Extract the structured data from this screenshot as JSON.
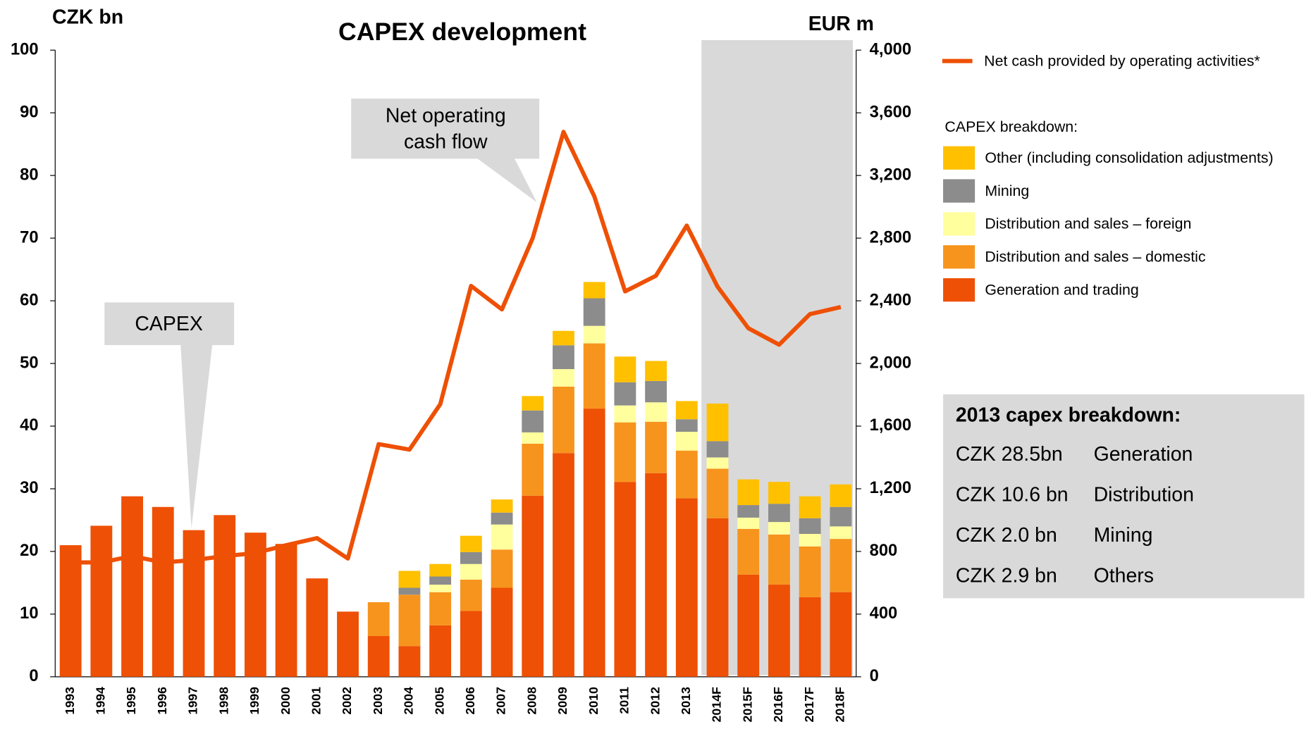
{
  "chart_data": {
    "type": "bar",
    "title": "CAPEX development",
    "ylabel": "CZK bn",
    "y2label": "EUR m",
    "categories": [
      "1993",
      "1994",
      "1995",
      "1996",
      "1997",
      "1998",
      "1999",
      "2000",
      "2001",
      "2002",
      "2003",
      "2004",
      "2005",
      "2006",
      "2007",
      "2008",
      "2009",
      "2010",
      "2011",
      "2012",
      "2013",
      "2014F",
      "2015F",
      "2016F",
      "2017F",
      "2018F"
    ],
    "series": [
      {
        "name": "Generation and  trading",
        "color": "#ee5005",
        "values": [
          21.0,
          24.1,
          28.8,
          27.1,
          23.4,
          25.8,
          23.0,
          21.2,
          15.7,
          10.4,
          6.5,
          4.9,
          8.2,
          10.5,
          14.2,
          28.9,
          35.7,
          42.8,
          31.1,
          32.5,
          28.5,
          25.3,
          16.3,
          14.7,
          12.7,
          13.5
        ]
      },
      {
        "name": "Distribution and sales  – domestic",
        "color": "#f7941d",
        "values": [
          0,
          0,
          0,
          0,
          0,
          0,
          0,
          0,
          0,
          0,
          5.4,
          8.2,
          5.3,
          5.0,
          6.1,
          8.3,
          10.6,
          10.4,
          9.5,
          8.2,
          7.6,
          7.9,
          7.3,
          8.0,
          8.1,
          8.5
        ]
      },
      {
        "name": "Distribution and sales – foreign",
        "color": "#ffff9e",
        "values": [
          0,
          0,
          0,
          0,
          0,
          0,
          0,
          0,
          0,
          0,
          0,
          0,
          1.2,
          2.5,
          4.0,
          1.8,
          2.8,
          2.8,
          2.7,
          3.1,
          3.0,
          1.8,
          1.8,
          2.0,
          2.0,
          2.0
        ]
      },
      {
        "name": "Mining",
        "color": "#8c8c8c",
        "values": [
          0,
          0,
          0,
          0,
          0,
          0,
          0,
          0,
          0,
          0,
          0,
          1.1,
          1.3,
          1.9,
          1.9,
          3.5,
          3.8,
          4.4,
          3.7,
          3.4,
          2.0,
          2.6,
          2.0,
          2.9,
          2.5,
          3.1
        ]
      },
      {
        "name": "Other (including consolidation adjustments)",
        "color": "#ffc000",
        "values": [
          0,
          0,
          0,
          0,
          0,
          0,
          0,
          0,
          0,
          0,
          0,
          2.7,
          2.0,
          2.6,
          2.1,
          2.3,
          2.3,
          2.6,
          4.1,
          3.2,
          2.9,
          6.0,
          4.1,
          3.5,
          3.5,
          3.6
        ]
      },
      {
        "name": "Net cash provided by operating activities*",
        "color": "#ee5005",
        "type": "line",
        "axis": "y2",
        "values": [
          730,
          730,
          770,
          730,
          745,
          770,
          790,
          840,
          885,
          755,
          1485,
          1450,
          1740,
          2495,
          2345,
          2800,
          3478,
          3067,
          2460,
          2560,
          2880,
          2490,
          2225,
          2120,
          2315,
          2360
        ]
      }
    ],
    "ylim": [
      0,
      100
    ],
    "yticks": [
      0,
      10,
      20,
      30,
      40,
      50,
      60,
      70,
      80,
      90,
      100
    ],
    "y2lim": [
      0,
      4000
    ],
    "y2ticks": [
      0,
      400,
      800,
      {
        "value": 1200,
        "label": "1,200"
      },
      {
        "value": 1600,
        "label": "1,600"
      },
      {
        "value": 2000,
        "label": "2,000"
      },
      {
        "value": 2400,
        "label": "2,400"
      },
      {
        "value": 2800,
        "label": "2,800"
      },
      {
        "value": 3200,
        "label": "3,200"
      },
      {
        "value": 3600,
        "label": "3,600"
      },
      {
        "value": 4000,
        "label": "4,000"
      }
    ],
    "legend_title": "CAPEX breakdown:",
    "annotations": [
      {
        "lines": [
          "CAPEX"
        ]
      },
      {
        "lines": [
          "Net operating",
          "cash flow"
        ]
      }
    ]
  },
  "breakdown_box": {
    "title": "2013 capex breakdown:",
    "rows": [
      [
        "CZK 28.5bn",
        "Generation"
      ],
      [
        "CZK 10.6 bn",
        "Distribution"
      ],
      [
        "CZK  2.0 bn",
        "Mining"
      ],
      [
        "CZK 2.9 bn",
        "Others"
      ]
    ]
  }
}
